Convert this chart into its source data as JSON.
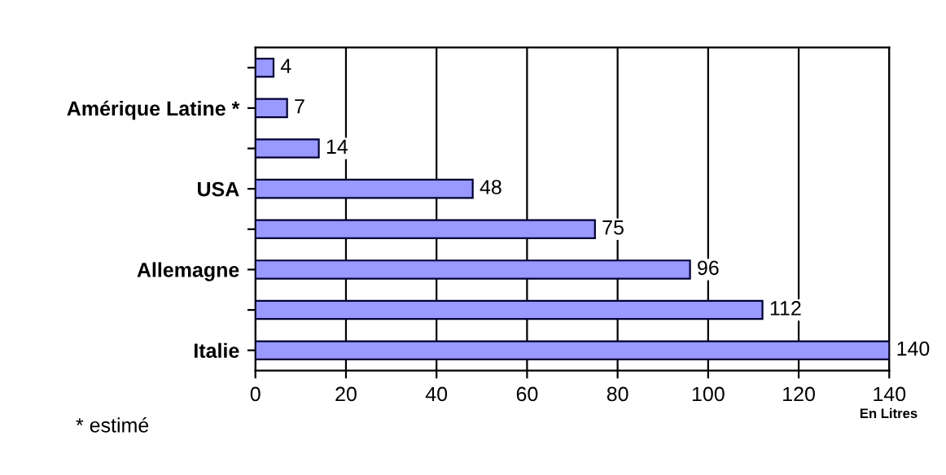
{
  "chart_data": {
    "type": "bar",
    "orientation": "horizontal",
    "categories": [
      null,
      "Amérique Latine *",
      null,
      "USA",
      null,
      "Allemagne",
      null,
      "Italie"
    ],
    "values": [
      4,
      7,
      14,
      48,
      75,
      96,
      112,
      140
    ],
    "color": "#9999ff",
    "xlim": [
      0,
      140
    ],
    "xticks": [
      0,
      20,
      40,
      60,
      80,
      100,
      120,
      140
    ],
    "grid": "x",
    "data_labels": true,
    "legend": false,
    "annotations": [
      "* estimé",
      "En Litres"
    ]
  }
}
